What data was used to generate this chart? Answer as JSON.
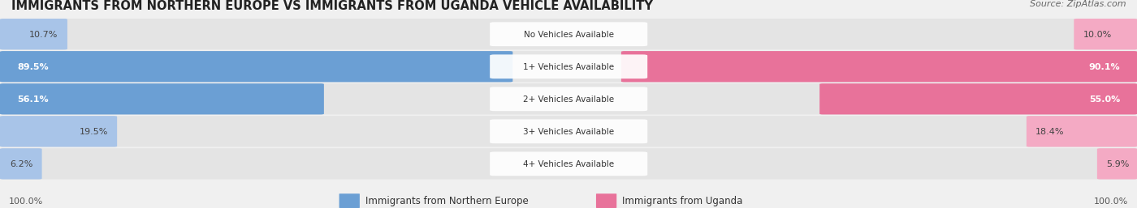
{
  "title": "IMMIGRANTS FROM NORTHERN EUROPE VS IMMIGRANTS FROM UGANDA VEHICLE AVAILABILITY",
  "source": "Source: ZipAtlas.com",
  "categories": [
    "No Vehicles Available",
    "1+ Vehicles Available",
    "2+ Vehicles Available",
    "3+ Vehicles Available",
    "4+ Vehicles Available"
  ],
  "northern_europe": [
    10.7,
    89.5,
    56.1,
    19.5,
    6.2
  ],
  "uganda": [
    10.0,
    90.1,
    55.0,
    18.4,
    5.9
  ],
  "color_blue": "#6b9fd4",
  "color_blue_light": "#a8c4e8",
  "color_pink": "#e8729a",
  "color_pink_light": "#f4aac4",
  "bg_color": "#f0f0f0",
  "row_bg": "#e4e4e4",
  "legend_label_blue": "Immigrants from Northern Europe",
  "legend_label_pink": "Immigrants from Uganda"
}
